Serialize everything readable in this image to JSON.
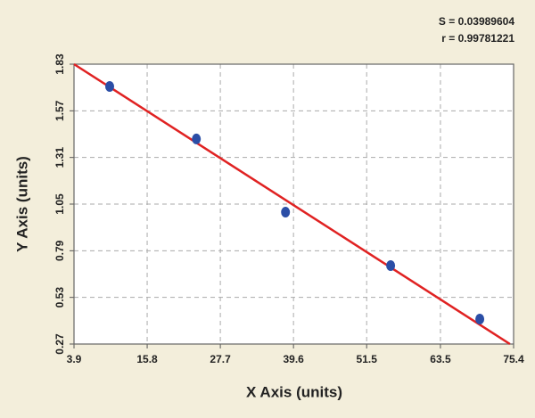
{
  "chart_data": {
    "type": "scatter",
    "x_label": "X Axis (units)",
    "y_label": "Y Axis (units)",
    "annotations": [
      "S = 0.03989604",
      "r = 0.99781221"
    ],
    "xlim": [
      3.9,
      75.4
    ],
    "xticks": [
      3.9,
      15.8,
      27.7,
      39.6,
      51.5,
      63.5,
      75.4
    ],
    "ylim": [
      0.27,
      1.83
    ],
    "yticks": [
      0.27,
      0.53,
      0.79,
      1.05,
      1.31,
      1.57,
      1.83
    ],
    "grid": true,
    "points": {
      "x": [
        9.7,
        23.8,
        38.3,
        55.4,
        69.9
      ],
      "y": [
        1.706,
        1.413,
        1.005,
        0.707,
        0.409
      ],
      "color": "#2b4ea6"
    },
    "fit_line": {
      "x": [
        3.9,
        74.8
      ],
      "y": [
        1.83,
        0.27
      ],
      "color": "#e02222"
    }
  }
}
